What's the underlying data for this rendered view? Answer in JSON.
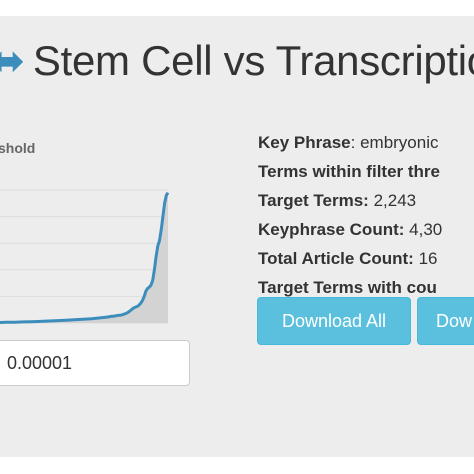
{
  "header": {
    "title_icon": "⬌",
    "title": "Stem Cell vs Transcriptio"
  },
  "chart": {
    "label": "shold",
    "accent_color": "#3c8dbc",
    "fill_color": "#d3d3d3"
  },
  "chart_data": {
    "type": "area",
    "title": "",
    "xlabel": "",
    "ylabel": "",
    "grid": true,
    "series": [
      {
        "x": [
          0,
          5,
          10,
          15,
          20,
          25,
          30,
          35,
          40,
          45,
          50,
          55,
          60,
          62,
          64,
          66,
          67,
          68,
          69,
          70,
          71,
          72,
          73,
          74,
          75,
          76,
          77,
          78,
          79,
          80,
          81,
          82,
          83,
          84,
          85,
          86,
          87,
          88,
          89,
          90,
          91,
          92,
          93,
          94,
          95,
          96,
          97,
          98,
          99,
          100
        ],
        "y": [
          0.4,
          0.5,
          0.6,
          0.8,
          1.0,
          1.2,
          1.5,
          1.8,
          2.1,
          2.4,
          2.8,
          3.2,
          3.8,
          4.1,
          4.4,
          4.8,
          5.1,
          5.0,
          5.4,
          5.6,
          5.8,
          5.9,
          6.2,
          6.6,
          7.0,
          7.6,
          8.5,
          9.5,
          10.5,
          11.5,
          12.0,
          12.5,
          13.5,
          15.0,
          17.0,
          20.0,
          24.0,
          26.0,
          27.0,
          28.5,
          32.0,
          40.0,
          50.0,
          58.0,
          62.0,
          70.0,
          80.0,
          90.0,
          96.0,
          98.0
        ]
      }
    ]
  },
  "threshold": {
    "value": "0.00001"
  },
  "stats": {
    "key_phrase": {
      "label": "Key Phrase",
      "value": "embryonic"
    },
    "terms_within_filter": {
      "label": "Terms within filter thre"
    },
    "target_terms": {
      "label": "Target Terms:",
      "value": "2,243"
    },
    "keyphrase_count": {
      "label": "Keyphrase Count:",
      "value": "4,30"
    },
    "total_article_count": {
      "label": "Total Article Count:",
      "value": "16"
    },
    "target_terms_with_count": {
      "label": "Target Terms with cou"
    }
  },
  "buttons": {
    "download_all": "Download All",
    "download_next": "Dow"
  }
}
